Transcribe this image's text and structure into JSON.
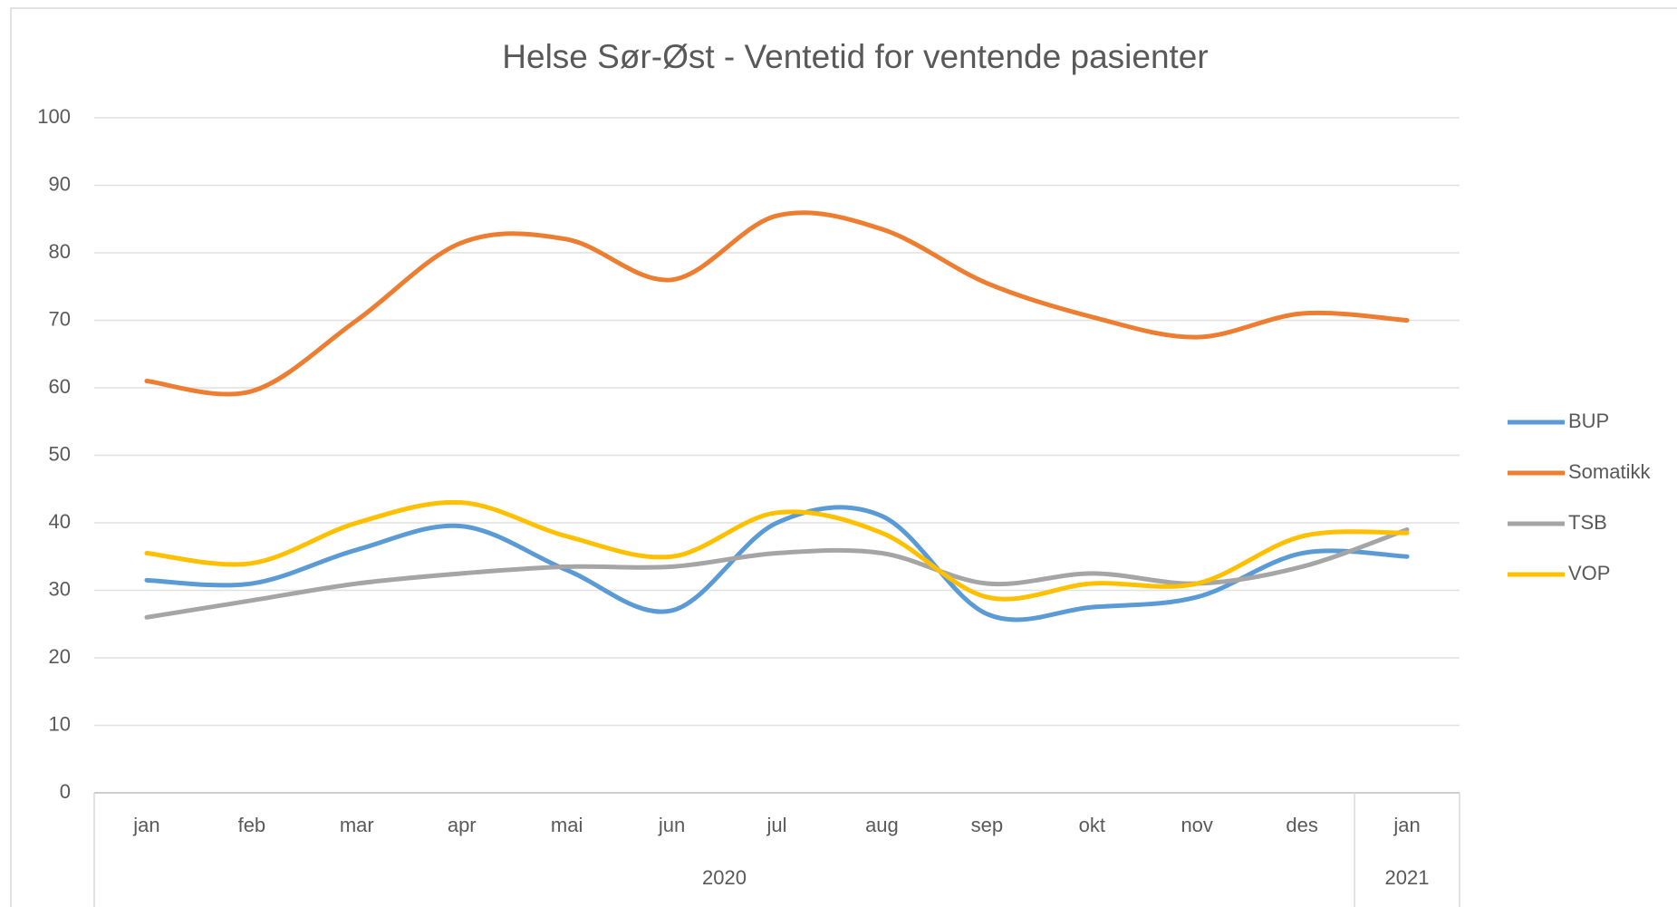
{
  "chart_data": {
    "type": "line",
    "title": "Helse Sør-Øst - Ventetid for ventende pasienter",
    "category_groups": [
      {
        "label": "2020",
        "categories": [
          "jan",
          "feb",
          "mar",
          "apr",
          "mai",
          "jun",
          "jul",
          "aug",
          "sep",
          "okt",
          "nov",
          "des"
        ]
      },
      {
        "label": "2021",
        "categories": [
          "jan"
        ]
      }
    ],
    "series": [
      {
        "name": "BUP",
        "color": "#5b9bd5",
        "values": [
          31.5,
          31,
          36,
          39.5,
          33,
          27,
          40,
          41,
          26.5,
          27.5,
          29,
          35.5,
          35
        ]
      },
      {
        "name": "Somatikk",
        "color": "#ed7d31",
        "values": [
          61,
          59.5,
          70,
          81.5,
          82,
          76,
          85.5,
          83.5,
          75.5,
          70.5,
          67.5,
          71,
          70
        ]
      },
      {
        "name": "TSB",
        "color": "#a5a5a5",
        "values": [
          26,
          28.5,
          31,
          32.5,
          33.5,
          33.5,
          35.5,
          35.5,
          31,
          32.5,
          31,
          33.5,
          39
        ]
      },
      {
        "name": "VOP",
        "color": "#ffc000",
        "values": [
          35.5,
          34,
          40,
          43,
          38,
          35,
          41.5,
          38.5,
          29,
          31,
          31,
          38,
          38.5
        ]
      }
    ],
    "ylim": [
      0,
      100
    ],
    "yticks": [
      0,
      10,
      20,
      30,
      40,
      50,
      60,
      70,
      80,
      90,
      100
    ],
    "grid": true,
    "smooth": true,
    "legend": "right"
  }
}
